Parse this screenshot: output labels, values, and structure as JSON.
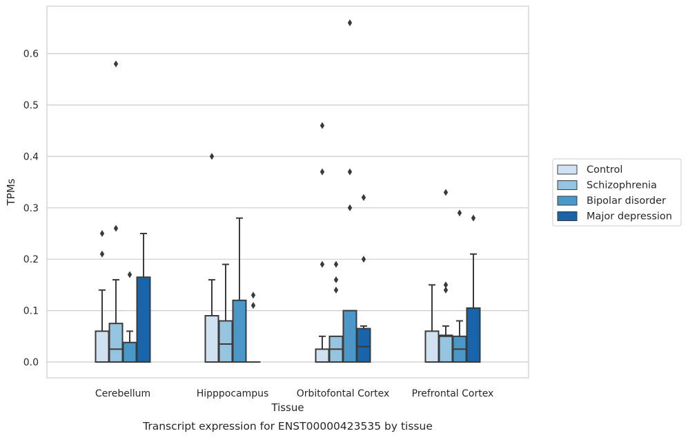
{
  "caption": "Transcript expression for ENST00000423535 by tissue",
  "chart_data": {
    "type": "boxplot",
    "xlabel": "Tissue",
    "ylabel": "TPMs",
    "ylim": [
      -0.032,
      0.695
    ],
    "yticks": [
      0.0,
      0.1,
      0.2,
      0.3,
      0.4,
      0.5,
      0.6
    ],
    "ytick_labels": [
      "0.0",
      "0.1",
      "0.2",
      "0.3",
      "0.4",
      "0.5",
      "0.6"
    ],
    "grid": "horizontal",
    "legend_position": "right",
    "categories": [
      "Cerebellum",
      "Hipppocampus",
      "Orbitofontal Cortex",
      "Prefrontal Cortex"
    ],
    "series": [
      {
        "name": "Control",
        "color": "#d0e1f2",
        "boxes": [
          {
            "q1": 0.0,
            "median": 0.0,
            "q3": 0.06,
            "whisker_low": 0.0,
            "whisker_high": 0.14,
            "outliers": [
              0.21,
              0.25
            ]
          },
          {
            "q1": 0.0,
            "median": 0.0,
            "q3": 0.09,
            "whisker_low": 0.0,
            "whisker_high": 0.16,
            "outliers": [
              0.4
            ]
          },
          {
            "q1": 0.0,
            "median": 0.0,
            "q3": 0.025,
            "whisker_low": 0.0,
            "whisker_high": 0.05,
            "outliers": [
              0.19,
              0.37,
              0.46
            ]
          },
          {
            "q1": 0.0,
            "median": 0.0,
            "q3": 0.06,
            "whisker_low": 0.0,
            "whisker_high": 0.15,
            "outliers": []
          }
        ]
      },
      {
        "name": "Schizophrenia",
        "color": "#94c4df",
        "boxes": [
          {
            "q1": 0.0,
            "median": 0.025,
            "q3": 0.075,
            "whisker_low": 0.0,
            "whisker_high": 0.16,
            "outliers": [
              0.26,
              0.58
            ]
          },
          {
            "q1": 0.0,
            "median": 0.035,
            "q3": 0.08,
            "whisker_low": 0.0,
            "whisker_high": 0.19,
            "outliers": []
          },
          {
            "q1": 0.0,
            "median": 0.025,
            "q3": 0.05,
            "whisker_low": 0.0,
            "whisker_high": 0.05,
            "outliers": [
              0.14,
              0.16,
              0.19
            ]
          },
          {
            "q1": 0.0,
            "median": 0.05,
            "q3": 0.052,
            "whisker_low": 0.0,
            "whisker_high": 0.07,
            "outliers": [
              0.14,
              0.15,
              0.33
            ]
          }
        ]
      },
      {
        "name": "Bipolar disorder",
        "color": "#4a98c9",
        "boxes": [
          {
            "q1": 0.0,
            "median": 0.0,
            "q3": 0.038,
            "whisker_low": 0.0,
            "whisker_high": 0.06,
            "outliers": [
              0.17
            ]
          },
          {
            "q1": 0.0,
            "median": 0.0,
            "q3": 0.12,
            "whisker_low": 0.0,
            "whisker_high": 0.28,
            "outliers": []
          },
          {
            "q1": 0.0,
            "median": 0.0,
            "q3": 0.1,
            "whisker_low": 0.0,
            "whisker_high": 0.1,
            "outliers": [
              0.3,
              0.37,
              0.66
            ]
          },
          {
            "q1": 0.0,
            "median": 0.025,
            "q3": 0.05,
            "whisker_low": 0.0,
            "whisker_high": 0.08,
            "outliers": [
              0.29
            ]
          }
        ]
      },
      {
        "name": "Major depression",
        "color": "#1764ab",
        "boxes": [
          {
            "q1": 0.0,
            "median": 0.0,
            "q3": 0.165,
            "whisker_low": 0.0,
            "whisker_high": 0.25,
            "outliers": []
          },
          {
            "q1": 0.0,
            "median": 0.0,
            "q3": 0.0,
            "whisker_low": 0.0,
            "whisker_high": 0.0,
            "outliers": [
              0.11,
              0.13
            ]
          },
          {
            "q1": 0.0,
            "median": 0.03,
            "q3": 0.065,
            "whisker_low": 0.0,
            "whisker_high": 0.07,
            "outliers": [
              0.2,
              0.32
            ]
          },
          {
            "q1": 0.0,
            "median": 0.0,
            "q3": 0.105,
            "whisker_low": 0.0,
            "whisker_high": 0.21,
            "outliers": [
              0.28
            ]
          }
        ]
      }
    ]
  }
}
